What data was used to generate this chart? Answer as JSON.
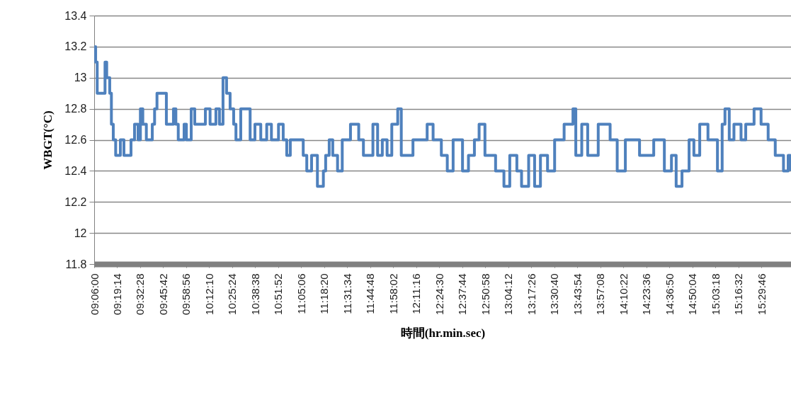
{
  "chart_data": {
    "type": "step",
    "xlabel": "時間(hr.min.sec)",
    "ylabel": "WBGT(°C)",
    "x": [
      9.102,
      9.114,
      9.129,
      9.193,
      9.204,
      9.22,
      9.249,
      9.265,
      9.283,
      9.306,
      9.351,
      9.385,
      9.431,
      9.453,
      9.487,
      9.521,
      9.543,
      9.566,
      9.6,
      9.634,
      9.657,
      9.679,
      9.702,
      9.77,
      9.792,
      9.86,
      9.883,
      9.906,
      9.962,
      9.984,
      10.03,
      10.064,
      10.166,
      10.211,
      10.267,
      10.301,
      10.335,
      10.369,
      10.403,
      10.437,
      10.459,
      10.505,
      10.561,
      10.595,
      10.641,
      10.697,
      10.754,
      10.799,
      10.867,
      10.912,
      10.946,
      10.98,
      11.104,
      11.138,
      11.184,
      11.24,
      11.297,
      11.319,
      11.353,
      11.387,
      11.433,
      11.478,
      11.557,
      11.636,
      11.681,
      11.772,
      11.817,
      11.862,
      11.908,
      11.953,
      12.01,
      12.044,
      12.156,
      12.292,
      12.349,
      12.428,
      12.485,
      12.541,
      12.631,
      12.688,
      12.745,
      12.79,
      12.846,
      12.948,
      13.028,
      13.084,
      13.152,
      13.197,
      13.265,
      13.322,
      13.378,
      13.446,
      13.514,
      13.605,
      13.69,
      13.717,
      13.774,
      13.831,
      13.932,
      14.046,
      14.114,
      14.192,
      14.328,
      14.464,
      14.566,
      14.634,
      14.679,
      14.735,
      14.803,
      14.849,
      14.905,
      14.984,
      15.075,
      15.12,
      15.147,
      15.188,
      15.233,
      15.301,
      15.346,
      15.426,
      15.493,
      15.561,
      15.629,
      15.708,
      15.753,
      15.772
    ],
    "series": [
      {
        "color": "#4f81bd",
        "values": [
          13.2,
          13.1,
          12.9,
          12.9,
          13.1,
          13.0,
          12.9,
          12.7,
          12.6,
          12.5,
          12.6,
          12.5,
          12.5,
          12.6,
          12.7,
          12.6,
          12.8,
          12.7,
          12.6,
          12.6,
          12.7,
          12.8,
          12.9,
          12.9,
          12.7,
          12.8,
          12.7,
          12.6,
          12.7,
          12.6,
          12.8,
          12.7,
          12.8,
          12.7,
          12.8,
          12.7,
          13.0,
          12.9,
          12.8,
          12.7,
          12.6,
          12.8,
          12.8,
          12.6,
          12.7,
          12.6,
          12.7,
          12.6,
          12.7,
          12.6,
          12.5,
          12.6,
          12.5,
          12.4,
          12.5,
          12.3,
          12.4,
          12.5,
          12.6,
          12.5,
          12.4,
          12.6,
          12.7,
          12.6,
          12.5,
          12.7,
          12.5,
          12.6,
          12.5,
          12.7,
          12.8,
          12.5,
          12.6,
          12.7,
          12.6,
          12.5,
          12.4,
          12.6,
          12.4,
          12.5,
          12.6,
          12.7,
          12.5,
          12.4,
          12.3,
          12.5,
          12.4,
          12.3,
          12.5,
          12.3,
          12.5,
          12.4,
          12.6,
          12.7,
          12.8,
          12.5,
          12.7,
          12.5,
          12.7,
          12.6,
          12.4,
          12.6,
          12.5,
          12.6,
          12.4,
          12.5,
          12.3,
          12.4,
          12.6,
          12.5,
          12.7,
          12.6,
          12.4,
          12.7,
          12.8,
          12.6,
          12.7,
          12.6,
          12.7,
          12.8,
          12.7,
          12.6,
          12.5,
          12.4,
          12.5,
          12.4
        ]
      }
    ],
    "xlim": [
      9.1,
      15.78
    ],
    "xticks": [
      {
        "value": 9.1,
        "label": "09:06:00"
      },
      {
        "value": 9.320556,
        "label": "09:19:14"
      },
      {
        "value": 9.541111,
        "label": "09:32:28"
      },
      {
        "value": 9.761667,
        "label": "09:45:42"
      },
      {
        "value": 9.982222,
        "label": "09:58:56"
      },
      {
        "value": 10.202778,
        "label": "10:12:10"
      },
      {
        "value": 10.423333,
        "label": "10:25:24"
      },
      {
        "value": 10.643889,
        "label": "10:38:38"
      },
      {
        "value": 10.864444,
        "label": "10:51:52"
      },
      {
        "value": 11.085,
        "label": "11:05:06"
      },
      {
        "value": 11.305556,
        "label": "11:18:20"
      },
      {
        "value": 11.526111,
        "label": "11:31:34"
      },
      {
        "value": 11.746667,
        "label": "11:44:48"
      },
      {
        "value": 11.967222,
        "label": "11:58:02"
      },
      {
        "value": 12.187778,
        "label": "12:11:16"
      },
      {
        "value": 12.408333,
        "label": "12:24:30"
      },
      {
        "value": 12.628889,
        "label": "12:37:44"
      },
      {
        "value": 12.849444,
        "label": "12:50:58"
      },
      {
        "value": 13.07,
        "label": "13:04:12"
      },
      {
        "value": 13.290556,
        "label": "13:17:26"
      },
      {
        "value": 13.511111,
        "label": "13:30:40"
      },
      {
        "value": 13.731667,
        "label": "13:43:54"
      },
      {
        "value": 13.952222,
        "label": "13:57:08"
      },
      {
        "value": 14.172778,
        "label": "14:10:22"
      },
      {
        "value": 14.393333,
        "label": "14:23:36"
      },
      {
        "value": 14.613889,
        "label": "14:36:50"
      },
      {
        "value": 14.834444,
        "label": "14:50:04"
      },
      {
        "value": 15.055,
        "label": "15:03:18"
      },
      {
        "value": 15.275556,
        "label": "15:16:32"
      },
      {
        "value": 15.496111,
        "label": "15:29:46"
      }
    ],
    "ylim": [
      11.8,
      13.4
    ],
    "yticks": [
      11.8,
      12,
      12.2,
      12.4,
      12.6,
      12.8,
      13,
      13.2,
      13.4
    ],
    "grid": "y"
  }
}
